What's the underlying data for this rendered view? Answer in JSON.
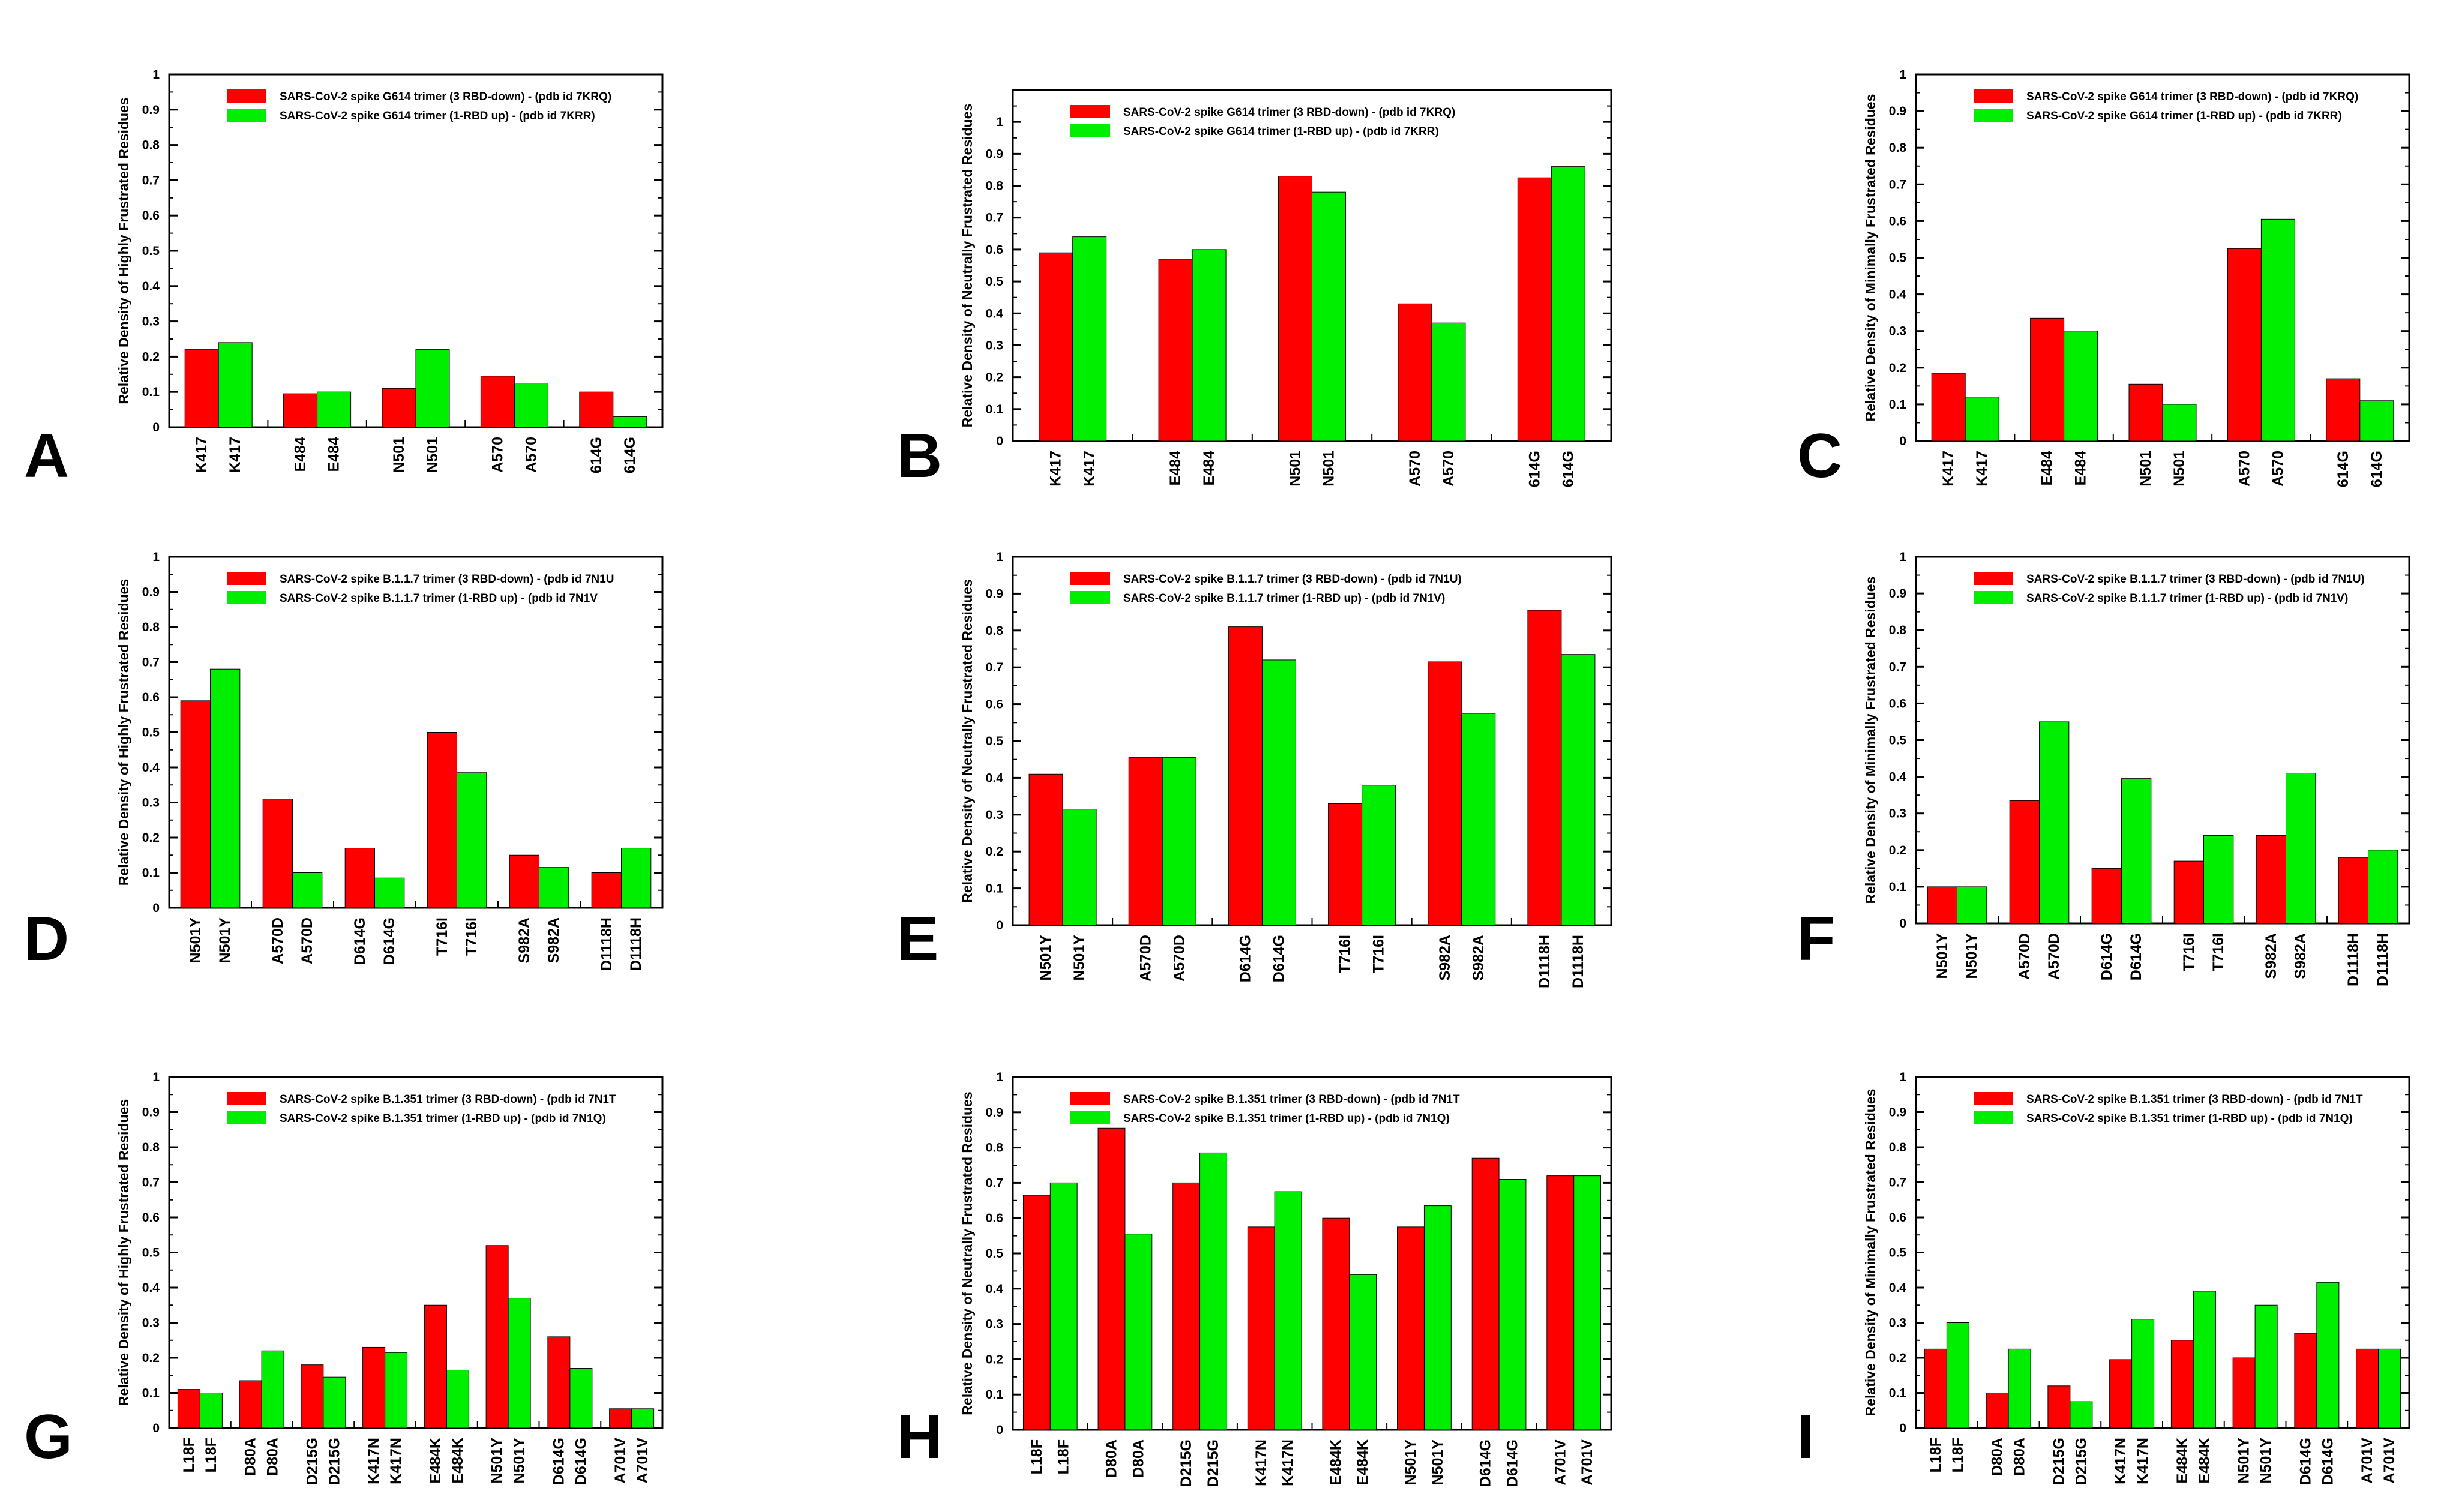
{
  "colors": {
    "red": "#ff0000",
    "green": "#00ee00",
    "axis": "#000000"
  },
  "chart_data": [
    {
      "label": "A",
      "type": "bar",
      "ylabel": "Relative Density of Highly Frustrated Residues",
      "ylim": [
        0,
        1
      ],
      "yticks": [
        "0",
        "0.1",
        "0.2",
        "0.3",
        "0.4",
        "0.5",
        "0.6",
        "0.7",
        "0.8",
        "0.9",
        "1"
      ],
      "categories": [
        "K417",
        "E484",
        "N501",
        "A570",
        "614G"
      ],
      "series": [
        {
          "name": "SARS-CoV-2 spike G614 trimer (3 RBD-down)  - (pdb id 7KRQ)",
          "color": "red",
          "values": [
            0.22,
            0.095,
            0.11,
            0.145,
            0.1
          ]
        },
        {
          "name": "SARS-CoV-2 spike G614 trimer (1-RBD up) - (pdb id 7KRR)",
          "color": "green",
          "values": [
            0.24,
            0.1,
            0.22,
            0.125,
            0.03
          ]
        }
      ]
    },
    {
      "label": "B",
      "type": "bar",
      "ylabel": "Relative Density of  Neutrally Frustrated Residues",
      "ylim": [
        0,
        1.1
      ],
      "yticks": [
        "0",
        "0.1",
        "0.2",
        "0.3",
        "0.4",
        "0.5",
        "0.6",
        "0.7",
        "0.8",
        "0.9",
        "1",
        ""
      ],
      "categories": [
        "K417",
        "E484",
        "N501",
        "A570",
        "614G"
      ],
      "series": [
        {
          "name": "SARS-CoV-2 spike G614 trimer (3 RBD-down)  - (pdb id 7KRQ)",
          "color": "red",
          "values": [
            0.59,
            0.57,
            0.83,
            0.43,
            0.825
          ]
        },
        {
          "name": "SARS-CoV-2 spike G614 trimer (1-RBD up) - (pdb id 7KRR)",
          "color": "green",
          "values": [
            0.64,
            0.6,
            0.78,
            0.37,
            0.86
          ]
        }
      ]
    },
    {
      "label": "C",
      "type": "bar",
      "ylabel": "Relative Density of Minimally Frustrated Residues",
      "ylim": [
        0,
        1
      ],
      "yticks": [
        "0",
        "0.1",
        "0.2",
        "0.3",
        "0.4",
        "0.5",
        "0.6",
        "0.7",
        "0.8",
        "0.9",
        "1"
      ],
      "categories": [
        "K417",
        "E484",
        "N501",
        "A570",
        "614G"
      ],
      "series": [
        {
          "name": "SARS-CoV-2 spike G614 trimer (3 RBD-down)  - (pdb id 7KRQ)",
          "color": "red",
          "values": [
            0.185,
            0.335,
            0.155,
            0.525,
            0.17
          ]
        },
        {
          "name": "SARS-CoV-2 spike G614 trimer (1-RBD up) - (pdb id 7KRR)",
          "color": "green",
          "values": [
            0.12,
            0.3,
            0.1,
            0.605,
            0.11
          ]
        }
      ]
    },
    {
      "label": "D",
      "type": "bar",
      "ylabel": "Relative Density of Highly Frustrated Residues",
      "ylim": [
        0,
        1
      ],
      "yticks": [
        "0",
        "0.1",
        "0.2",
        "0.3",
        "0.4",
        "0.5",
        "0.6",
        "0.7",
        "0.8",
        "0.9",
        "1"
      ],
      "categories": [
        "N501Y",
        "A570D",
        "D614G",
        "T716I",
        "S982A",
        "D1118H"
      ],
      "series": [
        {
          "name": "SARS-CoV-2 spike B.1.1.7 trimer (3 RBD-down)  - (pdb id 7N1U",
          "color": "red",
          "values": [
            0.59,
            0.31,
            0.17,
            0.5,
            0.15,
            0.1
          ]
        },
        {
          "name": "SARS-CoV-2 spike B.1.1.7 trimer (1-RBD up) - (pdb id 7N1V",
          "color": "green",
          "values": [
            0.68,
            0.1,
            0.085,
            0.385,
            0.115,
            0.17
          ]
        }
      ]
    },
    {
      "label": "E",
      "type": "bar",
      "ylabel": "Relative Density of Neutrally Frustrated Residues",
      "ylim": [
        0,
        1
      ],
      "yticks": [
        "0",
        "0.1",
        "0.2",
        "0.3",
        "0.4",
        "0.5",
        "0.6",
        "0.7",
        "0.8",
        "0.9",
        "1"
      ],
      "categories": [
        "N501Y",
        "A570D",
        "D614G",
        "T716I",
        "S982A",
        "D1118H"
      ],
      "series": [
        {
          "name": "SARS-CoV-2 spike B.1.1.7 trimer (3 RBD-down)  - (pdb id 7N1U)",
          "color": "red",
          "values": [
            0.41,
            0.455,
            0.81,
            0.33,
            0.715,
            0.855
          ]
        },
        {
          "name": "SARS-CoV-2 spike B.1.1.7 trimer (1-RBD up) - (pdb id 7N1V)",
          "color": "green",
          "values": [
            0.315,
            0.455,
            0.72,
            0.38,
            0.575,
            0.735
          ]
        }
      ]
    },
    {
      "label": "F",
      "type": "bar",
      "ylabel": "Relative Density of Minimally Frustrated Residues",
      "ylim": [
        0,
        1
      ],
      "yticks": [
        "0",
        "0.1",
        "0.2",
        "0.3",
        "0.4",
        "0.5",
        "0.6",
        "0.7",
        "0.8",
        "0.9",
        "1"
      ],
      "categories": [
        "N501Y",
        "A570D",
        "D614G",
        "T716I",
        "S982A",
        "D1118H"
      ],
      "series": [
        {
          "name": "SARS-CoV-2 spike B.1.1.7 trimer (3 RBD-down)  - (pdb id 7N1U)",
          "color": "red",
          "values": [
            0.1,
            0.335,
            0.15,
            0.17,
            0.24,
            0.18
          ]
        },
        {
          "name": "SARS-CoV-2 spike B.1.1.7 trimer (1-RBD up) - (pdb id 7N1V)",
          "color": "green",
          "values": [
            0.1,
            0.55,
            0.395,
            0.24,
            0.41,
            0.2
          ]
        }
      ]
    },
    {
      "label": "G",
      "type": "bar",
      "ylabel": "Relative Density of Highly Frustrated Residues",
      "ylim": [
        0,
        1
      ],
      "yticks": [
        "0",
        "0.1",
        "0.2",
        "0.3",
        "0.4",
        "0.5",
        "0.6",
        "0.7",
        "0.8",
        "0.9",
        "1"
      ],
      "categories": [
        "L18F",
        "D80A",
        "D215G",
        "K417N",
        "E484K",
        "N501Y",
        "D614G",
        "A701V"
      ],
      "series": [
        {
          "name": "SARS-CoV-2 spike B.1.351 trimer (3 RBD-down)  - (pdb id 7N1T",
          "color": "red",
          "values": [
            0.11,
            0.135,
            0.18,
            0.23,
            0.35,
            0.52,
            0.26,
            0.055
          ]
        },
        {
          "name": "SARS-CoV-2 spike B.1.351 trimer (1-RBD up) - (pdb id 7N1Q)",
          "color": "green",
          "values": [
            0.1,
            0.22,
            0.145,
            0.215,
            0.165,
            0.37,
            0.17,
            0.055
          ]
        }
      ]
    },
    {
      "label": "H",
      "type": "bar",
      "ylabel": "Relative Density of Neutrally Frustrated Residues",
      "ylim": [
        0,
        1
      ],
      "yticks": [
        "0",
        "0.1",
        "0.2",
        "0.3",
        "0.4",
        "0.5",
        "0.6",
        "0.7",
        "0.8",
        "0.9",
        "1"
      ],
      "categories": [
        "L18F",
        "D80A",
        "D215G",
        "K417N",
        "E484K",
        "N501Y",
        "D614G",
        "A701V"
      ],
      "series": [
        {
          "name": "SARS-CoV-2 spike B.1.351 trimer (3 RBD-down)  - (pdb id 7N1T",
          "color": "red",
          "values": [
            0.665,
            0.855,
            0.7,
            0.575,
            0.6,
            0.575,
            0.77,
            0.72
          ]
        },
        {
          "name": "SARS-CoV-2 spike B.1.351 trimer (1-RBD up) - (pdb id 7N1Q)",
          "color": "green",
          "values": [
            0.7,
            0.555,
            0.785,
            0.675,
            0.44,
            0.635,
            0.71,
            0.72
          ]
        }
      ]
    },
    {
      "label": "I",
      "type": "bar",
      "ylabel": "Relative Density of Minimally Frustrated Residues",
      "ylim": [
        0,
        1
      ],
      "yticks": [
        "0",
        "0.1",
        "0.2",
        "0.3",
        "0.4",
        "0.5",
        "0.6",
        "0.7",
        "0.8",
        "0.9",
        "1"
      ],
      "categories": [
        "L18F",
        "D80A",
        "D215G",
        "K417N",
        "E484K",
        "N501Y",
        "D614G",
        "A701V"
      ],
      "series": [
        {
          "name": "SARS-CoV-2 spike B.1.351 trimer (3 RBD-down)  - (pdb id 7N1T",
          "color": "red",
          "values": [
            0.225,
            0.1,
            0.12,
            0.195,
            0.25,
            0.2,
            0.27,
            0.225
          ]
        },
        {
          "name": "SARS-CoV-2 spike B.1.351 trimer (1-RBD up) - (pdb id 7N1Q)",
          "color": "green",
          "values": [
            0.3,
            0.225,
            0.075,
            0.31,
            0.39,
            0.35,
            0.415,
            0.225
          ]
        }
      ]
    }
  ]
}
